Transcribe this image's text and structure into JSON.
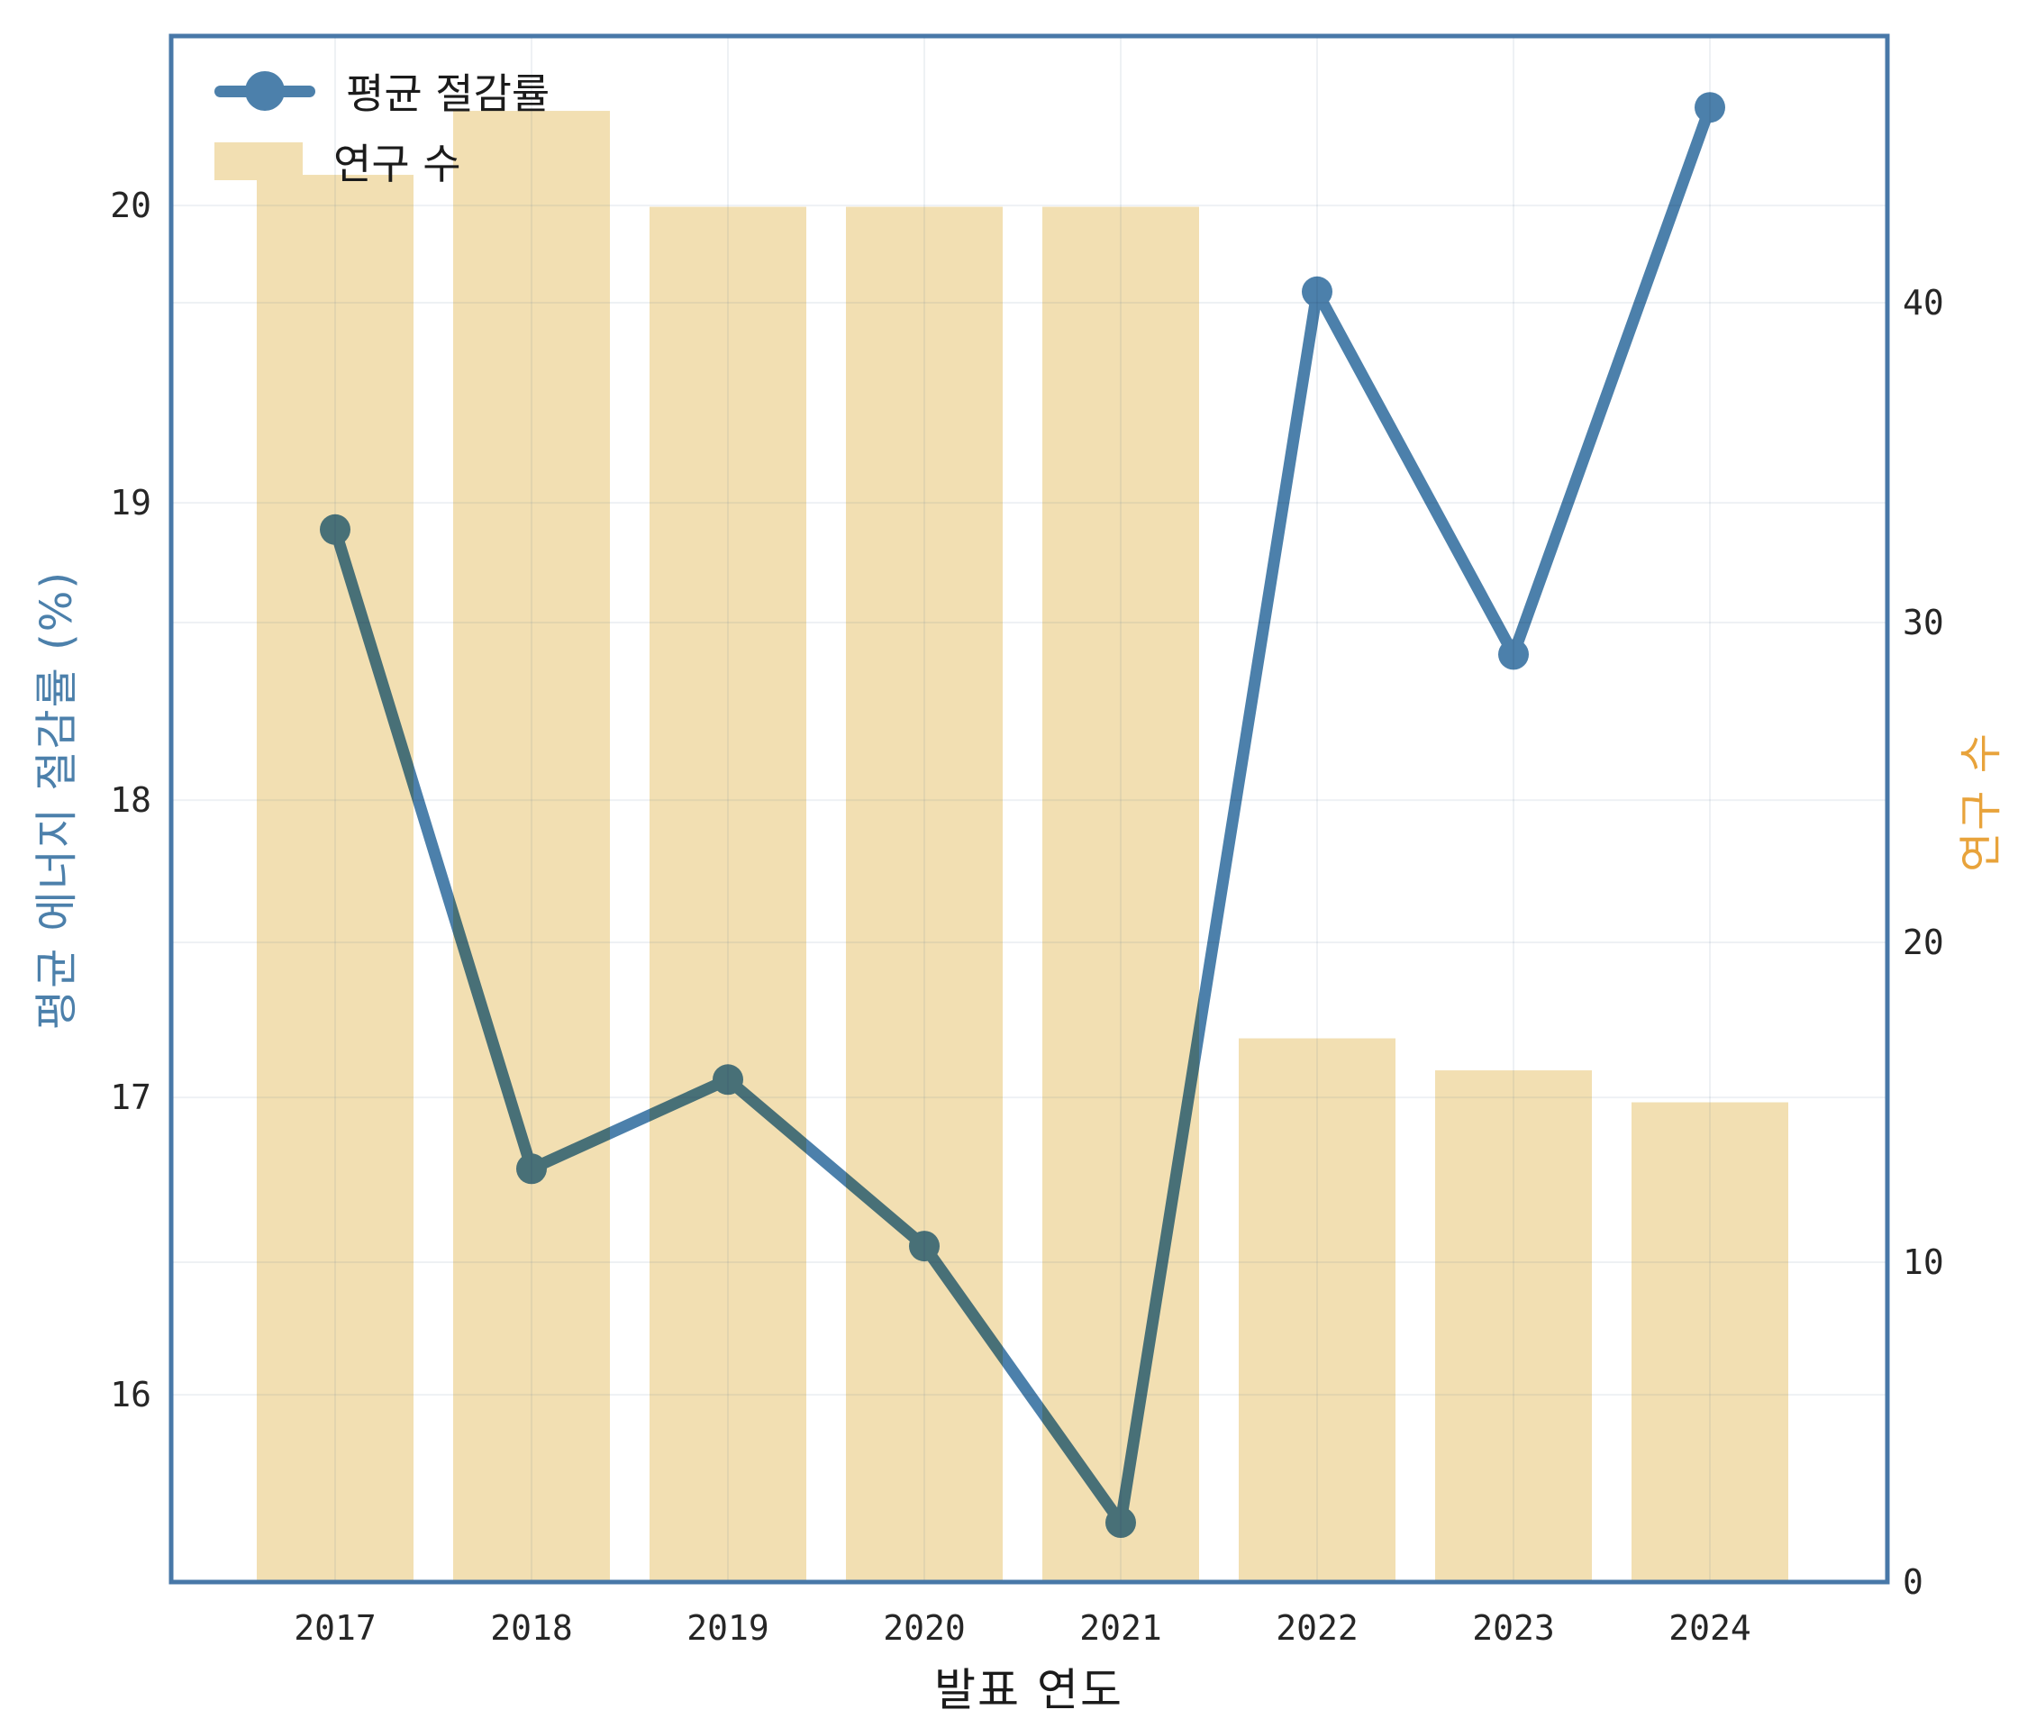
{
  "figure": {
    "background": "#ffffff",
    "border_color": "#4878a8",
    "grid_color": "rgba(90,115,150,0.10)",
    "tick_text_color": "#262626"
  },
  "colors": {
    "line": "#4c80ab",
    "bar": "#f2dfb2",
    "orange": "#e8a33b"
  },
  "legend": {
    "items": [
      {
        "label": "평균 절감률",
        "type": "line",
        "color": "#4c80ab"
      },
      {
        "label": "연구 수",
        "type": "bar",
        "color": "#f2dfb2"
      }
    ]
  },
  "chart_data": {
    "type": "combo-bar-line",
    "title": "",
    "xlabel": "발표 연도",
    "ylabel_left": "평균 에너지 절감률 (%)",
    "ylabel_right": "연구 수",
    "categories": [
      "2017",
      "2018",
      "2019",
      "2020",
      "2021",
      "2022",
      "2023",
      "2024"
    ],
    "series": [
      {
        "name": "평균 절감률",
        "type": "line",
        "axis": "left",
        "values": [
          18.91,
          16.76,
          17.06,
          16.5,
          15.57,
          19.71,
          18.49,
          20.33
        ]
      },
      {
        "name": "연구 수",
        "type": "bar",
        "axis": "right",
        "values": [
          44,
          46,
          43,
          43,
          43,
          17,
          16,
          15
        ]
      }
    ],
    "left_ticks": [
      16,
      17,
      18,
      19,
      20
    ],
    "right_ticks": [
      0,
      10,
      20,
      30,
      40
    ],
    "ylim_left": [
      15.37,
      20.57
    ],
    "ylim_right": [
      0,
      48.34
    ],
    "grid": true,
    "legend_position": "upper left"
  }
}
